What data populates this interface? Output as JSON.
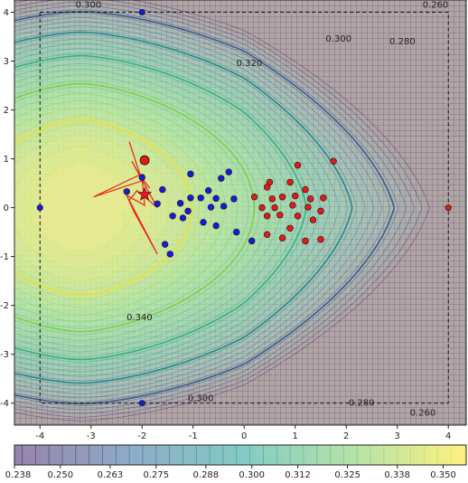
{
  "chart_data": {
    "type": "contour",
    "title": "",
    "xlabel": "",
    "ylabel": "",
    "xlim": [
      -4.5,
      4.35
    ],
    "ylim": [
      -4.45,
      4.25
    ],
    "x_ticks": [
      "-4",
      "-3",
      "-2",
      "-1",
      "0",
      "1",
      "2",
      "3",
      "4"
    ],
    "y_ticks": [
      "4",
      "3",
      "2",
      "1",
      "0",
      "-1",
      "-2",
      "-3",
      "-4"
    ],
    "x_tick_values": [
      -4,
      -3,
      -2,
      -1,
      0,
      1,
      2,
      3,
      4
    ],
    "y_tick_values": [
      4,
      3,
      2,
      1,
      0,
      -1,
      -2,
      -3,
      -4
    ],
    "colorbar": {
      "min": 0.238,
      "max": 0.356,
      "tick_labels": [
        "0.238",
        "0.250",
        "0.263",
        "0.275",
        "0.288",
        "0.300",
        "0.312",
        "0.325",
        "0.338",
        "0.350"
      ],
      "tick_values": [
        0.238,
        0.25,
        0.263,
        0.275,
        0.288,
        0.3,
        0.312,
        0.325,
        0.338,
        0.35
      ],
      "colormap": [
        "#440154",
        "#3b528b",
        "#21918c",
        "#5ec962",
        "#fde725"
      ]
    },
    "highlighted_contours": [
      {
        "level": 0.34,
        "color": "#f2e02a"
      },
      {
        "level": 0.32,
        "color": "#7ed04b"
      },
      {
        "level": 0.3,
        "color": "#3ab17a"
      },
      {
        "level": 0.28,
        "color": "#23898e"
      },
      {
        "level": 0.26,
        "color": "#3b5d8c"
      }
    ],
    "contour_labels": [
      {
        "text": "0.300",
        "x": -3.05,
        "y": 4.15
      },
      {
        "text": "0.260",
        "x": 3.75,
        "y": 4.15
      },
      {
        "text": "0.300",
        "x": 1.85,
        "y": 3.45
      },
      {
        "text": "0.280",
        "x": 3.1,
        "y": 3.4
      },
      {
        "text": "0.320",
        "x": 0.1,
        "y": 2.95
      },
      {
        "text": "0.340",
        "x": -2.05,
        "y": -2.25
      },
      {
        "text": "0.300",
        "x": -0.85,
        "y": -3.9
      },
      {
        "text": "0.280",
        "x": 2.3,
        "y": -4.0
      },
      {
        "text": "0.260",
        "x": 3.5,
        "y": -4.2
      }
    ],
    "domain_box": {
      "x": [
        -4,
        4
      ],
      "y": [
        -4,
        4
      ],
      "style": "dashed"
    },
    "series": [
      {
        "type": "scatter",
        "color": "#1a1ad8",
        "points": [
          [
            -2.3,
            0.33
          ],
          [
            -2.0,
            0.62
          ],
          [
            -1.6,
            0.37
          ],
          [
            -1.7,
            0.08
          ],
          [
            -1.05,
            0.69
          ],
          [
            -0.7,
            0.35
          ],
          [
            -0.45,
            0.6
          ],
          [
            -0.3,
            0.73
          ],
          [
            -1.05,
            0.2
          ],
          [
            -0.85,
            0.2
          ],
          [
            -0.55,
            0.19
          ],
          [
            -1.25,
            0.09
          ],
          [
            -1.1,
            -0.07
          ],
          [
            -0.4,
            0.03
          ],
          [
            -0.65,
            0.01
          ],
          [
            -1.4,
            -0.17
          ],
          [
            -1.2,
            -0.21
          ],
          [
            -0.8,
            -0.3
          ],
          [
            -0.55,
            -0.37
          ],
          [
            -0.2,
            0.18
          ],
          [
            -0.15,
            -0.5
          ],
          [
            0.15,
            -0.68
          ],
          [
            -1.55,
            -0.75
          ],
          [
            -1.45,
            -0.95
          ]
        ]
      },
      {
        "type": "scatter",
        "color": "#e31a1a",
        "points": [
          [
            1.05,
            0.87
          ],
          [
            1.75,
            0.95
          ],
          [
            0.5,
            0.52
          ],
          [
            0.45,
            0.42
          ],
          [
            0.9,
            0.52
          ],
          [
            1.2,
            0.37
          ],
          [
            0.2,
            0.22
          ],
          [
            0.55,
            0.18
          ],
          [
            0.75,
            0.22
          ],
          [
            1.0,
            0.24
          ],
          [
            1.3,
            0.18
          ],
          [
            1.55,
            0.2
          ],
          [
            0.35,
            0.0
          ],
          [
            0.6,
            0.0
          ],
          [
            0.95,
            0.05
          ],
          [
            1.25,
            0.01
          ],
          [
            1.5,
            -0.07
          ],
          [
            0.45,
            -0.17
          ],
          [
            0.7,
            -0.15
          ],
          [
            1.05,
            -0.17
          ],
          [
            1.35,
            -0.25
          ],
          [
            0.9,
            -0.42
          ],
          [
            0.45,
            -0.55
          ],
          [
            0.75,
            -0.62
          ],
          [
            1.2,
            -0.68
          ],
          [
            1.5,
            -0.65
          ]
        ]
      }
    ],
    "start_point": {
      "x": -1.95,
      "y": 0.97,
      "color": "#e31a1a"
    },
    "best_point": {
      "x": -1.95,
      "y": 0.27,
      "color": "#e31a1a",
      "marker": "star"
    },
    "boundary_points": [
      {
        "x": -4,
        "y": 0
      },
      {
        "x": 4,
        "y": 0,
        "color": "#e31a1a"
      },
      {
        "x": -2,
        "y": 4
      },
      {
        "x": -2,
        "y": -4
      }
    ],
    "trajectory": {
      "color": "#e8241a",
      "points": [
        [
          -2.25,
          1.35
        ],
        [
          -2.0,
          0.55
        ],
        [
          -2.95,
          0.22
        ],
        [
          -2.05,
          0.67
        ],
        [
          -2.2,
          0.95
        ],
        [
          -1.7,
          0.0
        ],
        [
          -2.1,
          0.35
        ],
        [
          -2.25,
          0.15
        ],
        [
          -1.7,
          -0.95
        ],
        [
          -2.15,
          -0.1
        ],
        [
          -2.3,
          0.25
        ],
        [
          -1.95,
          0.05
        ],
        [
          -2.0,
          0.6
        ],
        [
          -1.85,
          0.4
        ]
      ]
    }
  }
}
